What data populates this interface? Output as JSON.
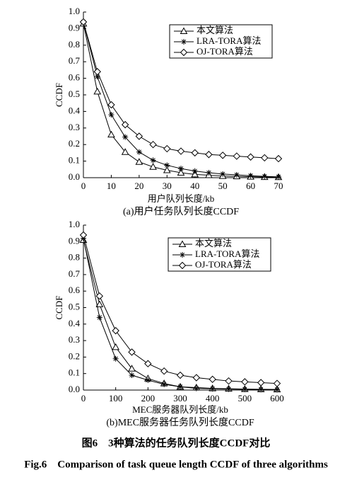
{
  "chart_data": [
    {
      "type": "line",
      "caption": "(a)用户任务队列长度CCDF",
      "x_label": "用户队列长度/kb",
      "y_label": "CCDF",
      "x": [
        0,
        5,
        10,
        15,
        20,
        25,
        30,
        35,
        40,
        45,
        50,
        55,
        60,
        65,
        70
      ],
      "xlim": [
        0,
        70
      ],
      "xticks": [
        0,
        10,
        20,
        30,
        40,
        50,
        60,
        70
      ],
      "ylim": [
        0,
        1
      ],
      "yticks": [
        {
          "value": 0,
          "label": "0.0"
        },
        0.1,
        0.2,
        0.3,
        0.4,
        0.5,
        0.6,
        0.7,
        0.8,
        0.9,
        {
          "value": 1,
          "label": "1.0"
        }
      ],
      "legend": "upper-right",
      "series": [
        {
          "name": "本文算法",
          "color": "#000000",
          "marker": "triangle",
          "values": [
            0.93,
            0.52,
            0.26,
            0.155,
            0.095,
            0.065,
            0.045,
            0.03,
            0.02,
            0.015,
            0.01,
            0.008,
            0.006,
            0.004,
            0.003
          ]
        },
        {
          "name": "LRA-TORA算法",
          "color": "#000000",
          "marker": "star",
          "values": [
            0.94,
            0.61,
            0.38,
            0.245,
            0.155,
            0.105,
            0.075,
            0.055,
            0.04,
            0.03,
            0.022,
            0.017,
            0.012,
            0.008,
            0.005
          ]
        },
        {
          "name": "OJ-TORA算法",
          "color": "#000000",
          "marker": "diamond",
          "values": [
            0.94,
            0.64,
            0.44,
            0.32,
            0.25,
            0.2,
            0.175,
            0.16,
            0.15,
            0.14,
            0.135,
            0.13,
            0.125,
            0.12,
            0.115
          ]
        }
      ]
    },
    {
      "type": "line",
      "caption": "(b)MEC服务器任务队列长度CCDF",
      "x_label": "MEC服务器队列长度/kb",
      "y_label": "CCDF",
      "x": [
        0,
        50,
        100,
        150,
        200,
        250,
        300,
        350,
        400,
        450,
        500,
        550,
        600
      ],
      "xlim": [
        0,
        600
      ],
      "xticks": [
        0,
        100,
        200,
        300,
        400,
        500,
        600
      ],
      "ylim": [
        0,
        1
      ],
      "yticks": [
        {
          "value": 0,
          "label": "0.0"
        },
        0.1,
        0.2,
        0.3,
        0.4,
        0.5,
        0.6,
        0.7,
        0.8,
        0.9,
        {
          "value": 1,
          "label": "1.0"
        }
      ],
      "legend": "upper-right",
      "series": [
        {
          "name": "本文算法",
          "color": "#000000",
          "marker": "triangle",
          "values": [
            0.91,
            0.52,
            0.26,
            0.13,
            0.07,
            0.04,
            0.02,
            0.015,
            0.01,
            0.008,
            0.006,
            0.005,
            0.004
          ]
        },
        {
          "name": "LRA-TORA算法",
          "color": "#000000",
          "marker": "star",
          "values": [
            0.92,
            0.44,
            0.19,
            0.09,
            0.06,
            0.035,
            0.02,
            0.01,
            0.008,
            0.006,
            0.005,
            0.004,
            0.003
          ]
        },
        {
          "name": "OJ-TORA算法",
          "color": "#000000",
          "marker": "diamond",
          "values": [
            0.94,
            0.57,
            0.36,
            0.23,
            0.16,
            0.115,
            0.09,
            0.075,
            0.065,
            0.055,
            0.05,
            0.045,
            0.04
          ]
        }
      ]
    }
  ],
  "figure_caption_cn": "图6　3种算法的任务队列长度CCDF对比",
  "figure_caption_en": "Fig.6　Comparison of task queue length CCDF of three algorithms"
}
